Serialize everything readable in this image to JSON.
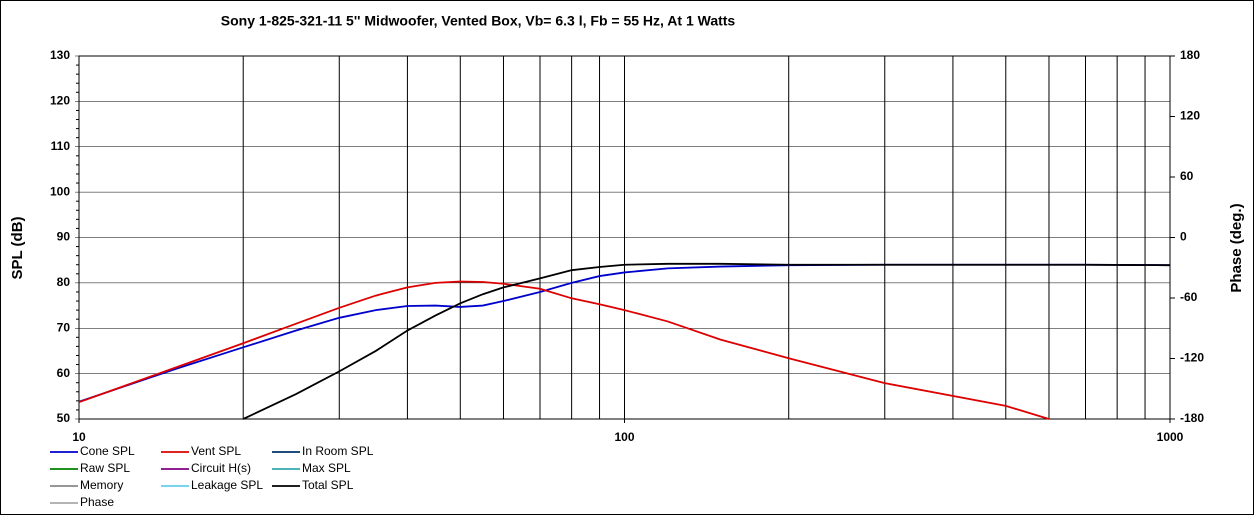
{
  "chart_data": {
    "type": "line",
    "title": "Sony 1-825-321-11 5'' Midwoofer,  Vented Box, Vb= 6.3 l,  Fb = 55 Hz,  At 1 Watts",
    "y_label": "SPL (dB)",
    "y2_label": "Phase (deg.)",
    "log_x": true,
    "grid": true,
    "xlim": [
      10,
      1000
    ],
    "xticks": [
      10,
      100,
      1000
    ],
    "x_minor_grid": [
      20,
      30,
      40,
      50,
      60,
      70,
      80,
      90,
      200,
      300,
      400,
      500,
      600,
      700,
      800,
      900
    ],
    "ylim": [
      50,
      130
    ],
    "yticks": [
      50,
      60,
      70,
      80,
      90,
      100,
      110,
      120,
      130
    ],
    "y2lim": [
      -180,
      180
    ],
    "y2ticks": [
      -180,
      -120,
      -60,
      0,
      60,
      120,
      180
    ],
    "x": [
      10,
      15,
      20,
      25,
      30,
      35,
      40,
      45,
      50,
      55,
      60,
      70,
      80,
      90,
      100,
      120,
      150,
      200,
      300,
      500,
      600,
      700,
      1000
    ],
    "series": [
      {
        "name": "Cone SPL",
        "color": "#0000cc",
        "values": [
          53.8,
          61,
          65.8,
          69.5,
          72.3,
          74,
          74.9,
          75,
          74.7,
          75,
          76,
          78,
          80,
          81.5,
          82.3,
          83.2,
          83.6,
          83.9,
          84,
          84,
          84,
          84,
          83.9
        ]
      },
      {
        "name": "Vent SPL",
        "color": "#dd0000",
        "values": [
          53.7,
          61.3,
          66.7,
          71,
          74.5,
          77.2,
          79,
          80,
          80.3,
          80.2,
          79.8,
          78.7,
          76.6,
          75.3,
          74,
          71.5,
          67.5,
          63.4,
          57.9,
          52.9,
          50,
          null,
          null
        ]
      },
      {
        "name": "In Room SPL",
        "color": "#003366"
      },
      {
        "name": "Raw SPL",
        "color": "#008000"
      },
      {
        "name": "Circuit H(s)",
        "color": "#800080"
      },
      {
        "name": "Max SPL",
        "color": "#33aaaa"
      },
      {
        "name": "Memory",
        "color": "#888888"
      },
      {
        "name": "Leakage SPL",
        "color": "#66ccee"
      },
      {
        "name": "Total SPL",
        "color": "#000000",
        "values": [
          null,
          null,
          50,
          55.5,
          60.5,
          65,
          69.5,
          72.8,
          75.5,
          77.5,
          79,
          81,
          82.8,
          83.5,
          84,
          84.2,
          84.2,
          84,
          84,
          84,
          84,
          84,
          83.9
        ]
      },
      {
        "name": "Phase",
        "color": "#aaaaaa"
      }
    ]
  }
}
